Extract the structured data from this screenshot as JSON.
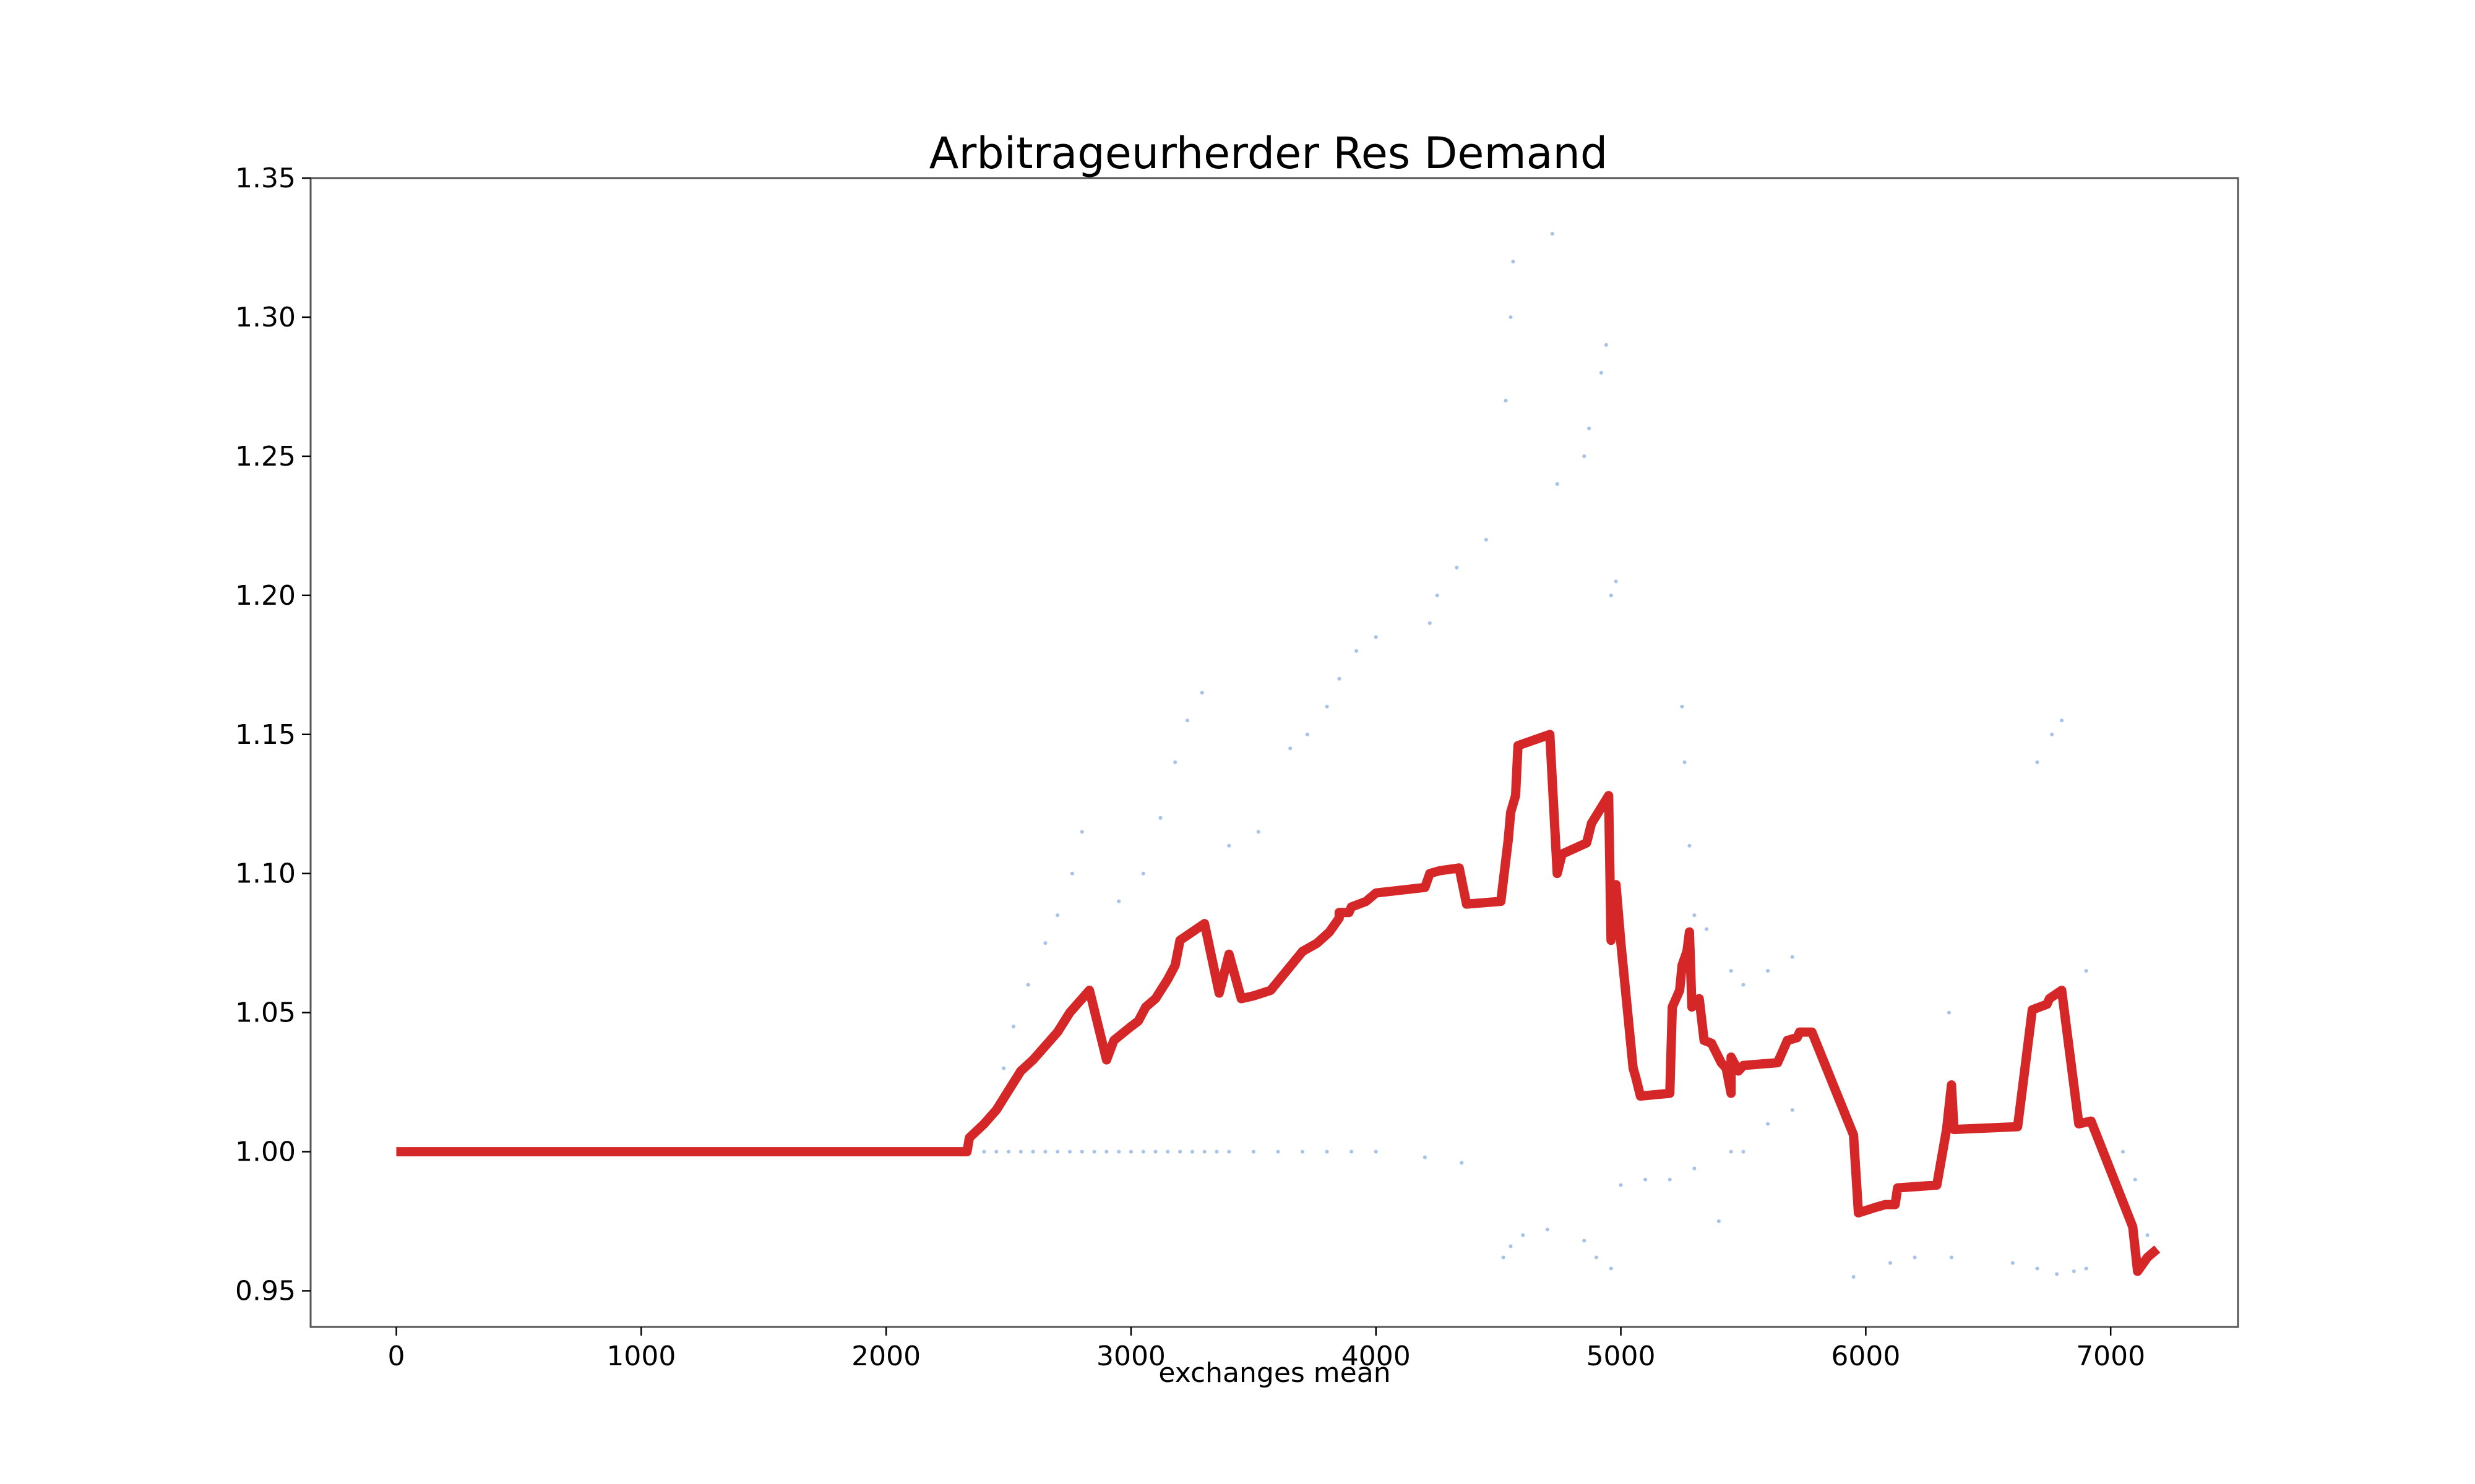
{
  "chart_data": {
    "type": "line",
    "title": "Arbitrageurherder Res Demand",
    "xlabel": "exchanges mean",
    "ylabel": "",
    "xlim": [
      -350,
      7520
    ],
    "ylim": [
      0.937,
      1.35
    ],
    "x_ticks": [
      0,
      1000,
      2000,
      3000,
      4000,
      5000,
      6000,
      7000
    ],
    "x_tick_labels": [
      "0",
      "1000",
      "2000",
      "3000",
      "4000",
      "5000",
      "6000",
      "7000"
    ],
    "y_ticks": [
      0.95,
      1.0,
      1.05,
      1.1,
      1.15,
      1.2,
      1.25,
      1.3,
      1.35
    ],
    "y_tick_labels": [
      "0.95",
      "1.00",
      "1.05",
      "1.10",
      "1.15",
      "1.20",
      "1.25",
      "1.30",
      "1.35"
    ],
    "grid": false,
    "series": [
      {
        "color": "#d62728",
        "points": [
          [
            0,
            1.0
          ],
          [
            2330,
            1.0
          ],
          [
            2340,
            1.005
          ],
          [
            2400,
            1.01
          ],
          [
            2450,
            1.015
          ],
          [
            2500,
            1.022
          ],
          [
            2550,
            1.029
          ],
          [
            2600,
            1.033
          ],
          [
            2650,
            1.038
          ],
          [
            2700,
            1.043
          ],
          [
            2750,
            1.05
          ],
          [
            2830,
            1.058
          ],
          [
            2900,
            1.033
          ],
          [
            2930,
            1.04
          ],
          [
            3000,
            1.045
          ],
          [
            3030,
            1.047
          ],
          [
            3060,
            1.052
          ],
          [
            3100,
            1.055
          ],
          [
            3150,
            1.062
          ],
          [
            3180,
            1.067
          ],
          [
            3200,
            1.076
          ],
          [
            3300,
            1.082
          ],
          [
            3360,
            1.057
          ],
          [
            3400,
            1.071
          ],
          [
            3450,
            1.055
          ],
          [
            3500,
            1.056
          ],
          [
            3570,
            1.058
          ],
          [
            3700,
            1.072
          ],
          [
            3760,
            1.075
          ],
          [
            3810,
            1.079
          ],
          [
            3850,
            1.084
          ],
          [
            3850,
            1.086
          ],
          [
            3890,
            1.086
          ],
          [
            3900,
            1.088
          ],
          [
            3960,
            1.09
          ],
          [
            4000,
            1.093
          ],
          [
            4200,
            1.095
          ],
          [
            4220,
            1.1
          ],
          [
            4260,
            1.101
          ],
          [
            4340,
            1.102
          ],
          [
            4370,
            1.089
          ],
          [
            4510,
            1.09
          ],
          [
            4540,
            1.112
          ],
          [
            4550,
            1.122
          ],
          [
            4570,
            1.128
          ],
          [
            4580,
            1.146
          ],
          [
            4710,
            1.15
          ],
          [
            4740,
            1.1
          ],
          [
            4760,
            1.107
          ],
          [
            4860,
            1.111
          ],
          [
            4880,
            1.118
          ],
          [
            4950,
            1.128
          ],
          [
            4960,
            1.076
          ],
          [
            4980,
            1.096
          ],
          [
            5000,
            1.075
          ],
          [
            5050,
            1.03
          ],
          [
            5060,
            1.027
          ],
          [
            5080,
            1.02
          ],
          [
            5200,
            1.021
          ],
          [
            5210,
            1.052
          ],
          [
            5240,
            1.058
          ],
          [
            5250,
            1.067
          ],
          [
            5270,
            1.072
          ],
          [
            5280,
            1.079
          ],
          [
            5290,
            1.052
          ],
          [
            5320,
            1.055
          ],
          [
            5340,
            1.04
          ],
          [
            5370,
            1.039
          ],
          [
            5410,
            1.032
          ],
          [
            5430,
            1.03
          ],
          [
            5450,
            1.021
          ],
          [
            5450,
            1.034
          ],
          [
            5480,
            1.029
          ],
          [
            5500,
            1.031
          ],
          [
            5640,
            1.032
          ],
          [
            5680,
            1.04
          ],
          [
            5720,
            1.041
          ],
          [
            5730,
            1.043
          ],
          [
            5780,
            1.043
          ],
          [
            5950,
            1.006
          ],
          [
            5970,
            0.978
          ],
          [
            6040,
            0.98
          ],
          [
            6080,
            0.981
          ],
          [
            6120,
            0.981
          ],
          [
            6130,
            0.987
          ],
          [
            6290,
            0.988
          ],
          [
            6330,
            1.008
          ],
          [
            6350,
            1.024
          ],
          [
            6360,
            1.008
          ],
          [
            6620,
            1.009
          ],
          [
            6680,
            1.051
          ],
          [
            6740,
            1.053
          ],
          [
            6750,
            1.055
          ],
          [
            6800,
            1.058
          ],
          [
            6870,
            1.01
          ],
          [
            6920,
            1.011
          ],
          [
            7090,
            0.973
          ],
          [
            7110,
            0.957
          ],
          [
            7150,
            0.962
          ],
          [
            7190,
            0.965
          ]
        ]
      }
    ],
    "scatter": {
      "color": "#5b8fd6",
      "points": [
        [
          2400,
          1.0
        ],
        [
          2450,
          1.0
        ],
        [
          2500,
          1.0
        ],
        [
          2550,
          1.0
        ],
        [
          2600,
          1.0
        ],
        [
          2650,
          1.0
        ],
        [
          2700,
          1.0
        ],
        [
          2750,
          1.0
        ],
        [
          2800,
          1.0
        ],
        [
          2850,
          1.0
        ],
        [
          2900,
          1.0
        ],
        [
          2950,
          1.0
        ],
        [
          3000,
          1.0
        ],
        [
          3050,
          1.0
        ],
        [
          3100,
          1.0
        ],
        [
          3150,
          1.0
        ],
        [
          3200,
          1.0
        ],
        [
          3250,
          1.0
        ],
        [
          3300,
          1.0
        ],
        [
          3350,
          1.0
        ],
        [
          3400,
          1.0
        ],
        [
          3500,
          1.0
        ],
        [
          3600,
          1.0
        ],
        [
          3700,
          1.0
        ],
        [
          3800,
          1.0
        ],
        [
          3900,
          1.0
        ],
        [
          4000,
          1.0
        ],
        [
          4200,
          0.998
        ],
        [
          4350,
          0.996
        ],
        [
          2480,
          1.03
        ],
        [
          2520,
          1.045
        ],
        [
          2580,
          1.06
        ],
        [
          2650,
          1.075
        ],
        [
          2700,
          1.085
        ],
        [
          2760,
          1.1
        ],
        [
          2800,
          1.115
        ],
        [
          2950,
          1.09
        ],
        [
          3050,
          1.1
        ],
        [
          3120,
          1.12
        ],
        [
          3180,
          1.14
        ],
        [
          3230,
          1.155
        ],
        [
          3290,
          1.165
        ],
        [
          3400,
          1.11
        ],
        [
          3520,
          1.115
        ],
        [
          3650,
          1.145
        ],
        [
          3720,
          1.15
        ],
        [
          3800,
          1.16
        ],
        [
          3850,
          1.17
        ],
        [
          3920,
          1.18
        ],
        [
          4000,
          1.185
        ],
        [
          4220,
          1.19
        ],
        [
          4250,
          1.2
        ],
        [
          4330,
          1.21
        ],
        [
          4450,
          1.22
        ],
        [
          4530,
          1.27
        ],
        [
          4550,
          1.3
        ],
        [
          4560,
          1.32
        ],
        [
          4720,
          1.33
        ],
        [
          4740,
          1.24
        ],
        [
          4850,
          1.25
        ],
        [
          4870,
          1.26
        ],
        [
          4920,
          1.28
        ],
        [
          4940,
          1.29
        ],
        [
          4960,
          1.2
        ],
        [
          4980,
          1.205
        ],
        [
          4520,
          0.962
        ],
        [
          4550,
          0.966
        ],
        [
          4600,
          0.97
        ],
        [
          4700,
          0.972
        ],
        [
          4850,
          0.968
        ],
        [
          4900,
          0.962
        ],
        [
          4960,
          0.958
        ],
        [
          5000,
          0.988
        ],
        [
          5100,
          0.99
        ],
        [
          5200,
          0.99
        ],
        [
          5300,
          0.994
        ],
        [
          5250,
          1.16
        ],
        [
          5260,
          1.14
        ],
        [
          5280,
          1.11
        ],
        [
          5300,
          1.085
        ],
        [
          5350,
          1.08
        ],
        [
          5450,
          1.065
        ],
        [
          5500,
          1.06
        ],
        [
          5600,
          1.065
        ],
        [
          5700,
          1.07
        ],
        [
          5400,
          0.975
        ],
        [
          5450,
          1.0
        ],
        [
          5500,
          1.0
        ],
        [
          5600,
          1.01
        ],
        [
          5700,
          1.015
        ],
        [
          5950,
          0.955
        ],
        [
          6100,
          0.96
        ],
        [
          6200,
          0.962
        ],
        [
          6340,
          1.05
        ],
        [
          6350,
          0.962
        ],
        [
          6600,
          0.96
        ],
        [
          6700,
          0.958
        ],
        [
          6780,
          0.956
        ],
        [
          6850,
          0.957
        ],
        [
          6900,
          0.958
        ],
        [
          6700,
          1.14
        ],
        [
          6760,
          1.15
        ],
        [
          6800,
          1.155
        ],
        [
          6900,
          1.065
        ],
        [
          7050,
          1.0
        ],
        [
          7100,
          0.99
        ],
        [
          7150,
          0.97
        ]
      ]
    }
  }
}
